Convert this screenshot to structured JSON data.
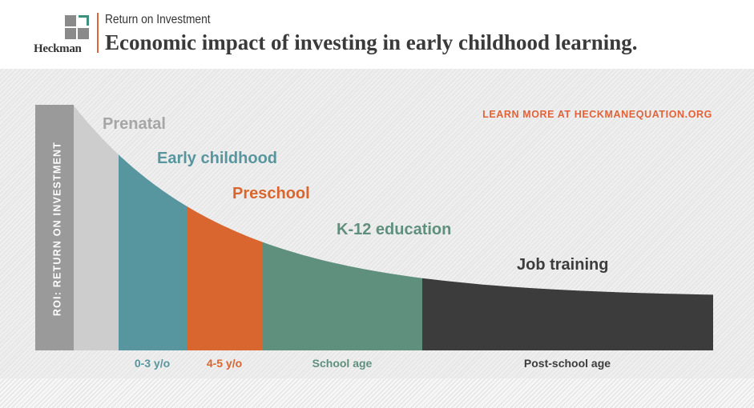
{
  "header": {
    "logo_text": "Heckman",
    "kicker": "Return on Investment",
    "headline": "Economic impact of investing in early childhood learning."
  },
  "cta": "LEARN MORE AT HECKMANEQUATION.ORG",
  "colors": {
    "accent": "#e0633a",
    "prenatal": "#cdcdcd",
    "early_childhood": "#58969f",
    "preschool": "#d9662f",
    "k12": "#5f8f7d",
    "job_training": "#3c3c3c",
    "y_axis_bar": "#9a9a9a"
  },
  "chart_data": {
    "type": "area",
    "title": "Economic impact of investing in early childhood learning.",
    "ylabel": "ROI: RETURN ON INVESTMENT",
    "xlabel": "",
    "grid": false,
    "legend": "none",
    "curve": "monotonic decreasing, steepest at prenatal and flattening through job training",
    "segments": [
      {
        "name": "Prenatal",
        "stage_label": "Prenatal",
        "age_label": "",
        "color": "#cdcdcd",
        "label_color": "#a6a6a6"
      },
      {
        "name": "Early childhood",
        "stage_label": "Early childhood",
        "age_label": "0-3 y/o",
        "color": "#58969f",
        "label_color": "#58969f"
      },
      {
        "name": "Preschool",
        "stage_label": "Preschool",
        "age_label": "4-5 y/o",
        "color": "#d9662f",
        "label_color": "#d9662f"
      },
      {
        "name": "K-12 education",
        "stage_label": "K-12 education",
        "age_label": "School age",
        "color": "#5f8f7d",
        "label_color": "#5f8f7d"
      },
      {
        "name": "Job training",
        "stage_label": "Job training",
        "age_label": "Post-school age",
        "color": "#3c3c3c",
        "label_color": "#3c3c3c"
      }
    ]
  }
}
